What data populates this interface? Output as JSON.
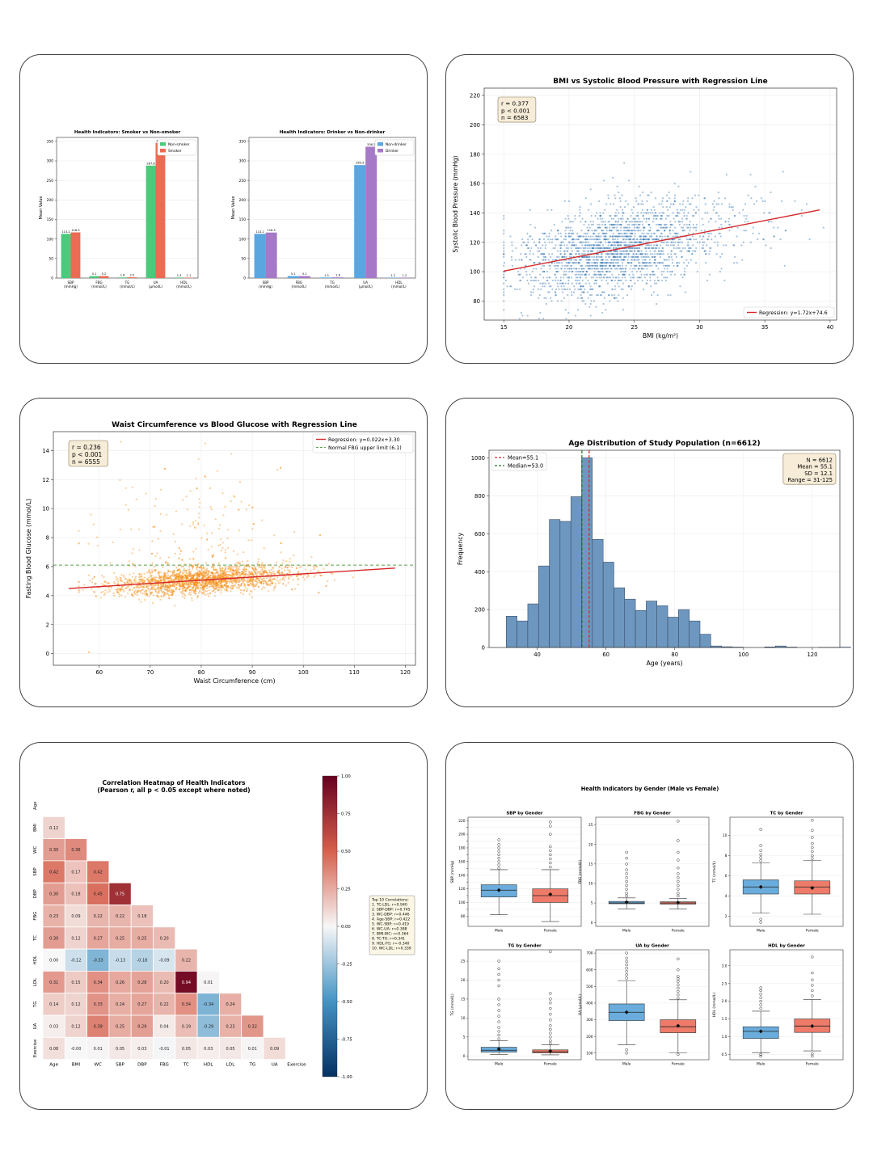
{
  "colors": {
    "nonsmoker": "#4dc97c",
    "smoker": "#eb6b55",
    "nondrinker": "#5aa6e0",
    "drinker": "#a678c8",
    "scatter_blue": "#3b79b4",
    "scatter_orange": "#f7921e",
    "hist": "#6e97c0",
    "regression": "#d62728",
    "mean_line": "#d62728",
    "median_line": "#1f7a2c",
    "male_box": "#6aacdb",
    "female_box": "#ee7b6a"
  },
  "chart_data": [
    {
      "id": "smoker",
      "type": "bar",
      "title": "Health Indicators: Smoker vs Non-smoker",
      "xlabel": "",
      "ylabel": "Mean Value",
      "categories": [
        "SBP\n(mmHg)",
        "FBG\n(mmol/L)",
        "TG\n(mmol/L)",
        "UA\n(μmol/L)",
        "HDL\n(mmol/L)"
      ],
      "ylim": [
        0,
        360
      ],
      "yticks": [
        0,
        50,
        100,
        150,
        200,
        250,
        300,
        350
      ],
      "legend_position": "top-right",
      "series": [
        {
          "name": "Non-smoker",
          "values": [
            113.2,
            5.1,
            1.6,
            287.8,
            1.3
          ],
          "labels": [
            "113.2",
            "5.1",
            "1.6",
            "287.8",
            "1.3"
          ]
        },
        {
          "name": "Smoker",
          "values": [
            116.9,
            5.2,
            2.0,
            346.0,
            1.1
          ],
          "labels": [
            "116.9",
            "5.2",
            "2.0",
            "346.0",
            "1.1"
          ]
        }
      ]
    },
    {
      "id": "drinker",
      "type": "bar",
      "title": "Health Indicators: Drinker vs Non-drinker",
      "xlabel": "",
      "ylabel": "Mean Value",
      "categories": [
        "SBP\n(mmHg)",
        "FBG\n(mmol/L)",
        "TG\n(mmol/L)",
        "UA\n(μmol/L)",
        "HDL\n(mmol/L)"
      ],
      "ylim": [
        0,
        360
      ],
      "yticks": [
        0,
        50,
        100,
        150,
        200,
        250,
        300,
        350
      ],
      "legend_position": "top-right",
      "series": [
        {
          "name": "Non-drinker",
          "values": [
            113.2,
            5.1,
            1.5,
            289.3,
            1.2
          ],
          "labels": [
            "113.2",
            "5.1",
            "1.5",
            "289.3",
            "1.2"
          ]
        },
        {
          "name": "Drinker",
          "values": [
            116.5,
            5.1,
            1.8,
            336.2,
            1.2
          ],
          "labels": [
            "116.5",
            "5.1",
            "1.8",
            "336.2",
            "1.2"
          ]
        }
      ]
    },
    {
      "id": "bmi_sbp",
      "type": "scatter",
      "title": "BMI vs Systolic Blood Pressure with Regression Line",
      "xlabel": "BMI (kg/m²)",
      "ylabel": "Systolic Blood Pressure (mmHg)",
      "xlim": [
        13.5,
        40.5
      ],
      "ylim": [
        67,
        225
      ],
      "xticks": [
        15,
        20,
        25,
        30,
        35,
        40
      ],
      "yticks": [
        80,
        100,
        120,
        140,
        160,
        180,
        200,
        220
      ],
      "grid": true,
      "regression": {
        "slope": 1.72,
        "intercept": 74.6,
        "x_range": [
          15,
          39.2
        ],
        "label": "Regression: y=1.72x+74.6"
      },
      "stats_lines": [
        "r = 0.377",
        "p < 0.001",
        "n = 6583"
      ],
      "legend_position": "bottom-right",
      "n_points": 6583
    },
    {
      "id": "waist_glucose",
      "type": "scatter",
      "title": "Waist Circumference vs Blood Glucose with Regression Line",
      "xlabel": "Waist Circumference (cm)",
      "ylabel": "Fasting Blood Glucose (mmol/L)",
      "xlim": [
        51,
        122
      ],
      "ylim": [
        -0.8,
        15.3
      ],
      "xticks": [
        60,
        70,
        80,
        90,
        100,
        110,
        120
      ],
      "yticks": [
        0,
        2,
        4,
        6,
        8,
        10,
        12,
        14
      ],
      "grid": true,
      "regression": {
        "slope": 0.022,
        "intercept": 3.3,
        "x_range": [
          54,
          118
        ],
        "label": "Regression: y=0.022x+3.30"
      },
      "reference_line": {
        "y": 6.1,
        "label": "Normal FBG upper limit (6.1)"
      },
      "stats_lines": [
        "r = 0.236",
        "p < 0.001",
        "n = 6555"
      ],
      "legend_position": "top-right",
      "n_points": 6555
    },
    {
      "id": "age_hist",
      "type": "bar",
      "title": "Age Distribution of Study Population (n=6612)",
      "xlabel": "Age (years)",
      "ylabel": "Frequency",
      "xlim": [
        26,
        128
      ],
      "ylim": [
        0,
        1040
      ],
      "xticks": [
        40,
        60,
        80,
        100,
        120
      ],
      "yticks": [
        0,
        200,
        400,
        600,
        800,
        1000
      ],
      "bin_start": 31,
      "bin_width": 3.13,
      "counts": [
        165,
        140,
        230,
        430,
        675,
        665,
        795,
        1000,
        570,
        450,
        315,
        255,
        195,
        245,
        220,
        160,
        200,
        140,
        70,
        8,
        4,
        2,
        0,
        0,
        3,
        8,
        2,
        0,
        0,
        1,
        1,
        2
      ],
      "mean": 55.1,
      "median": 53.0,
      "legend": [
        "Mean=55.1",
        "Median=53.0"
      ],
      "stats_lines": [
        "N = 6612",
        "Mean = 55.1",
        "SD = 12.1",
        "Range = 31-125"
      ],
      "grid": true
    },
    {
      "id": "corr_heatmap",
      "type": "heatmap",
      "title": "Correlation Heatmap of Health Indicators",
      "subtitle": "(Pearson r, all p < 0.05 except where noted)",
      "variables": [
        "Age",
        "BMI",
        "WC",
        "SBP",
        "DBP",
        "FBG",
        "TC",
        "HDL",
        "LDL",
        "TG",
        "UA",
        "Exercise"
      ],
      "lower_triangle": [
        [],
        [
          0.12
        ],
        [
          0.3,
          0.36
        ],
        [
          0.42,
          0.17,
          0.42
        ],
        [
          0.3,
          0.18,
          0.45,
          0.75
        ],
        [
          0.23,
          0.09,
          0.22,
          0.22,
          0.18
        ],
        [
          0.3,
          0.12,
          0.27,
          0.25,
          0.25,
          0.2
        ],
        [
          0.0,
          -0.12,
          -0.33,
          -0.13,
          -0.18,
          -0.09,
          0.22
        ],
        [
          0.31,
          0.15,
          0.34,
          0.26,
          0.28,
          0.2,
          0.94,
          0.01
        ],
        [
          0.14,
          0.12,
          0.33,
          0.24,
          0.27,
          0.22,
          0.34,
          -0.34,
          0.24
        ],
        [
          0.03,
          0.12,
          0.39,
          0.25,
          0.29,
          0.04,
          0.19,
          -0.29,
          0.23,
          0.32
        ],
        [
          0.08,
          -0.0,
          0.01,
          0.05,
          0.03,
          -0.01,
          0.05,
          0.03,
          0.05,
          0.01,
          0.09
        ]
      ],
      "lower_triangle_labels": [
        [],
        [
          "0.12"
        ],
        [
          "0.30",
          "0.36"
        ],
        [
          "0.42",
          "0.17",
          "0.42"
        ],
        [
          "0.30",
          "0.18",
          "0.45",
          "0.75"
        ],
        [
          "0.23",
          "0.09",
          "0.22",
          "0.22",
          "0.18"
        ],
        [
          "0.30",
          "0.12",
          "0.27",
          "0.25",
          "0.25",
          "0.20"
        ],
        [
          "0.00",
          "-0.12",
          "-0.33",
          "-0.13",
          "-0.18",
          "-0.09",
          "0.22"
        ],
        [
          "0.31",
          "0.15",
          "0.34",
          "0.26",
          "0.28",
          "0.20",
          "0.94",
          "0.01"
        ],
        [
          "0.14",
          "0.12",
          "0.33",
          "0.24",
          "0.27",
          "0.22",
          "0.34",
          "-0.34",
          "0.24"
        ],
        [
          "0.03",
          "0.12",
          "0.39",
          "0.25",
          "0.29",
          "0.04",
          "0.19",
          "-0.29",
          "0.23",
          "0.32"
        ],
        [
          "0.08",
          "-0.00",
          "0.01",
          "0.05",
          "0.03",
          "-0.01",
          "0.05",
          "0.03",
          "0.05",
          "0.01",
          "0.09"
        ]
      ],
      "colorbar_range": [
        -1,
        1
      ],
      "colorbar_ticks": [
        "1.00",
        "0.75",
        "0.50",
        "0.25",
        "0.00",
        "-0.25",
        "-0.50",
        "-0.75",
        "-1.00"
      ],
      "top_correlations_title": "Top 10 Correlations:",
      "top_correlations": [
        "1. TC-LDL: r=0.940",
        "2. SBP-DBP: r=0.745",
        "3. WC-DBP: r=0.446",
        "4. Age-SBP: r=0.422",
        "5. WC-SBP: r=0.419",
        "6. WC-UA: r=0.388",
        "7. BMI-WC: r=0.364",
        "8. TC-TG: r=0.341",
        "9. HDL-TG: r=-0.340",
        "10. WC-LDL: r=0.339"
      ]
    },
    {
      "id": "gender_boxplots",
      "type": "box",
      "title": "Health Indicators by Gender (Male vs Female)",
      "categories": [
        "Male",
        "Female"
      ],
      "subplots": [
        {
          "title": "SBP by Gender",
          "ylabel": "SBP (mmHg)",
          "ylim": [
            65,
            225
          ],
          "yticks": [
            80,
            90,
            100,
            110,
            120,
            130,
            140,
            150,
            160,
            170,
            180,
            190,
            200,
            210,
            220
          ],
          "ytick_labels": [
            "80",
            "",
            "100",
            "",
            "120",
            "",
            "140",
            "",
            "160",
            "",
            "180",
            "",
            "200",
            "",
            "220"
          ],
          "boxes": [
            {
              "whislo": 82,
              "q1": 108,
              "med": 118,
              "q3": 126,
              "whishi": 148,
              "mean": 118,
              "fliers": [
                150,
                155,
                160,
                165,
                170,
                175,
                180,
                185,
                192
              ]
            },
            {
              "whislo": 72,
              "q1": 100,
              "med": 110,
              "q3": 120,
              "whishi": 148,
              "mean": 112,
              "fliers": [
                152,
                158,
                164,
                170,
                176,
                182,
                200,
                212,
                218
              ]
            }
          ]
        },
        {
          "title": "FBG by Gender",
          "ylabel": "FBG (mmol/L)",
          "ylim": [
            -1,
            27
          ],
          "yticks": [
            0,
            5,
            10,
            15,
            20,
            25
          ],
          "boxes": [
            {
              "whislo": 3.5,
              "q1": 4.8,
              "med": 5.0,
              "q3": 5.4,
              "whishi": 6.3,
              "mean": 5.2,
              "fliers": [
                6.8,
                7.5,
                8.5,
                9.5,
                10.5,
                11.5,
                12.5,
                13.5,
                15,
                16.5,
                18
              ]
            },
            {
              "whislo": 3.5,
              "q1": 4.7,
              "med": 5.0,
              "q3": 5.3,
              "whishi": 6.2,
              "mean": 5.1,
              "fliers": [
                6.8,
                7.5,
                8.5,
                9.5,
                10.5,
                11.5,
                12.5,
                14,
                16,
                18,
                21,
                26
              ]
            }
          ]
        },
        {
          "title": "TC by Gender",
          "ylabel": "TC (mmol/L)",
          "ylim": [
            1,
            11.8
          ],
          "yticks": [
            2,
            4,
            6,
            8,
            10
          ],
          "boxes": [
            {
              "whislo": 2.3,
              "q1": 4.2,
              "med": 4.9,
              "q3": 5.6,
              "whishi": 7.3,
              "mean": 4.9,
              "fliers": [
                1.4,
                1.7,
                7.5,
                7.8,
                8.1,
                8.5,
                9.0,
                10.6
              ]
            },
            {
              "whislo": 2.2,
              "q1": 4.2,
              "med": 4.9,
              "q3": 5.5,
              "whishi": 7.5,
              "mean": 4.8,
              "fliers": [
                7.7,
                8.0,
                8.4,
                8.8,
                9.2,
                9.8,
                10.5,
                11.5
              ]
            }
          ]
        },
        {
          "title": "TG by Gender",
          "ylabel": "TG (mmol/L)",
          "ylim": [
            -1,
            28
          ],
          "yticks": [
            0,
            5,
            10,
            15,
            20,
            25
          ],
          "boxes": [
            {
              "whislo": 0.4,
              "q1": 1.0,
              "med": 1.5,
              "q3": 2.3,
              "whishi": 4.0,
              "mean": 1.8,
              "fliers": [
                4.5,
                5.5,
                6.5,
                7.5,
                9,
                10.5,
                12,
                13.5,
                15,
                18.5,
                20,
                21.5,
                23,
                25
              ]
            },
            {
              "whislo": 0.3,
              "q1": 0.8,
              "med": 1.1,
              "q3": 1.6,
              "whishi": 2.9,
              "mean": 1.3,
              "fliers": [
                3.3,
                4,
                5,
                6,
                7,
                8,
                9.5,
                11,
                12.5,
                14,
                15,
                16.5,
                27.5
              ]
            }
          ]
        },
        {
          "title": "UA by Gender",
          "ylabel": "UA (μmol/L)",
          "ylim": [
            60,
            720
          ],
          "yticks": [
            100,
            200,
            300,
            400,
            500,
            600,
            700
          ],
          "boxes": [
            {
              "whislo": 150,
              "q1": 295,
              "med": 345,
              "q3": 395,
              "whishi": 535,
              "mean": 345,
              "fliers": [
                100,
                120,
                550,
                570,
                590,
                610,
                630,
                650,
                670,
                700
              ]
            },
            {
              "whislo": 100,
              "q1": 222,
              "med": 258,
              "q3": 300,
              "whishi": 420,
              "mean": 264,
              "fliers": [
                92,
                430,
                450,
                470,
                490,
                510,
                530,
                545,
                560,
                600,
                665
              ]
            }
          ]
        },
        {
          "title": "HDL by Gender",
          "ylabel": "HDL (mmol/L)",
          "ylim": [
            0.35,
            3.45
          ],
          "yticks": [
            0.5,
            1.0,
            1.5,
            2.0,
            2.5,
            3.0
          ],
          "ytick_labels": [
            "0.5",
            "1.0",
            "1.5",
            "2.0",
            "2.5",
            "3.0"
          ],
          "boxes": [
            {
              "whislo": 0.55,
              "q1": 0.95,
              "med": 1.15,
              "q3": 1.28,
              "whishi": 1.72,
              "mean": 1.15,
              "fliers": [
                0.45,
                0.5,
                1.8,
                1.9,
                2.0,
                2.1,
                2.2,
                2.3,
                2.38
              ]
            },
            {
              "whislo": 0.6,
              "q1": 1.12,
              "med": 1.3,
              "q3": 1.5,
              "whishi": 2.05,
              "mean": 1.3,
              "fliers": [
                0.45,
                0.52,
                2.15,
                2.3,
                2.45,
                2.6,
                2.8,
                3.25
              ]
            }
          ]
        }
      ]
    }
  ]
}
